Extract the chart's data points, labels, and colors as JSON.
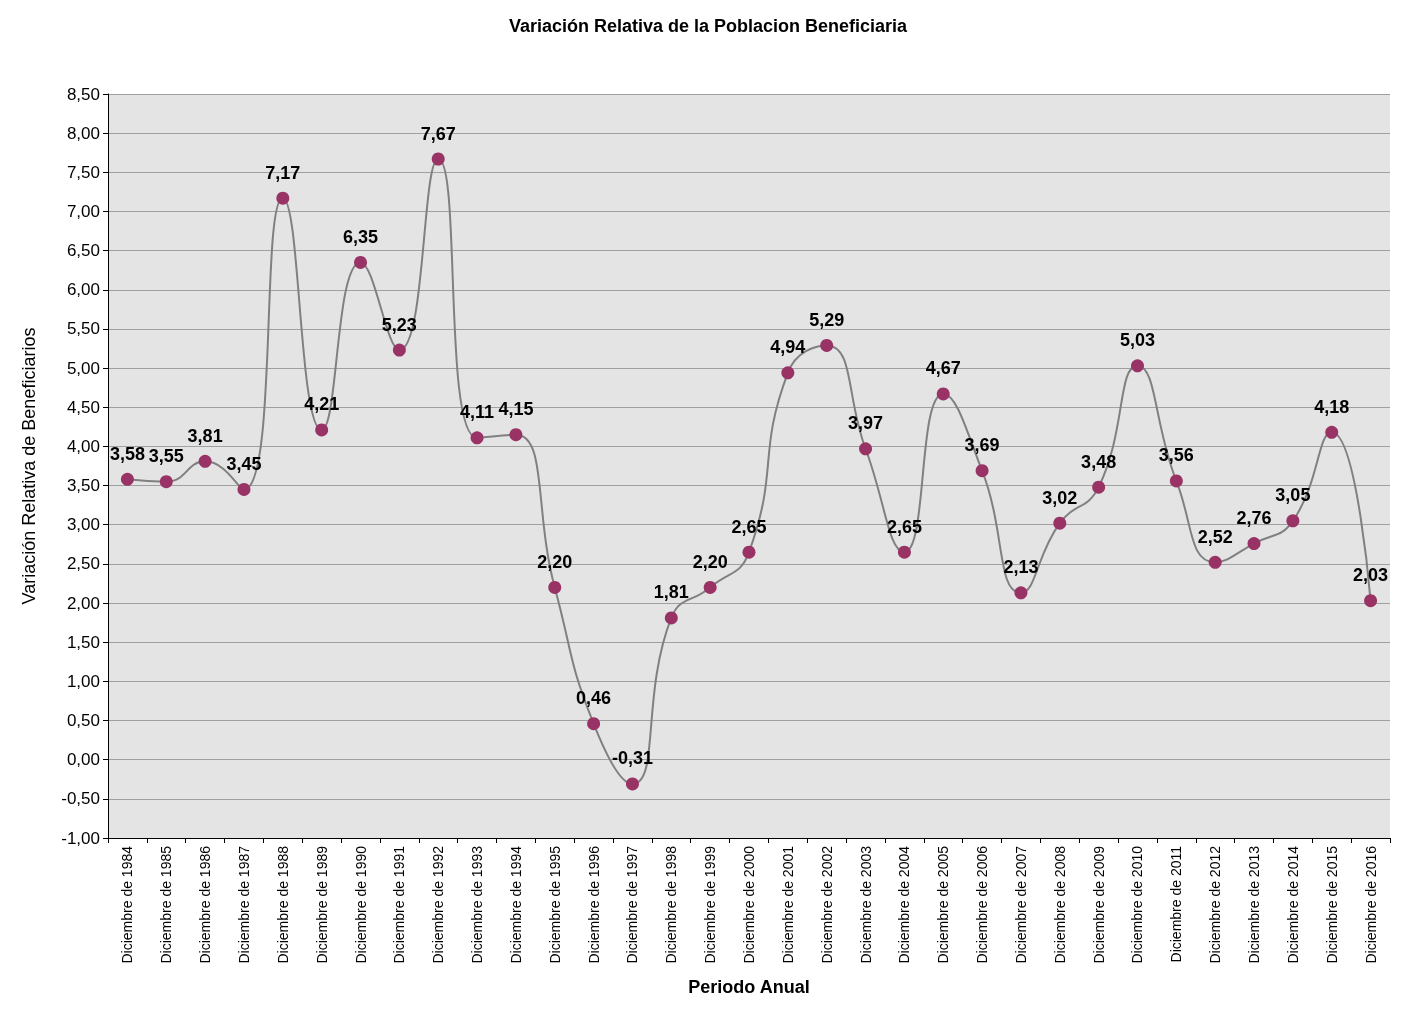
{
  "chart_data": {
    "type": "line",
    "title": "Variación Relativa de la Poblacion Beneficiaria",
    "xlabel": "Periodo Anual",
    "ylabel": "Variación Relativa de Beneficiarios",
    "categories": [
      "Diciembre de 1984",
      "Diciembre de 1985",
      "Diciembre de 1986",
      "Diciembre de 1987",
      "Diciembre de 1988",
      "Diciembre de 1989",
      "Diciembre de 1990",
      "Diciembre de 1991",
      "Diciembre de 1992",
      "Diciembre de 1993",
      "Diciembre de 1994",
      "Diciembre de 1995",
      "Diciembre de 1996",
      "Diciembre de 1997",
      "Diciembre de 1998",
      "Diciembre de 1999",
      "Diciembre de 2000",
      "Diciembre de 2001",
      "Diciembre de 2002",
      "Diciembre de 2003",
      "Diciembre de 2004",
      "Diciembre de 2005",
      "Diciembre de 2006",
      "Diciembre de 2007",
      "Diciembre de 2008",
      "Diciembre de 2009",
      "Diciembre de 2010",
      "Diciembre de 2011",
      "Diciembre de 2012",
      "Diciembre de 2013",
      "Diciembre de 2014",
      "Diciembre de 2015",
      "Diciembre de 2016"
    ],
    "series": [
      {
        "color": "#808080",
        "colors": [
          "#993366",
          "#993366",
          "#993366",
          "#993366",
          "#993366",
          "#993366",
          "#993366",
          "#993366",
          "#993366",
          "#993366",
          "#993366",
          "#993366",
          "#993366",
          "#993366",
          "#993366",
          "#993366",
          "#993366",
          "#993366",
          "#993366",
          "#993366",
          "#993366",
          "#993366",
          "#993366",
          "#993366",
          "#993366",
          "#993366",
          "#993366",
          "#993366",
          "#993366",
          "#993366",
          "#993366",
          "#993366",
          "#993366"
        ],
        "values": [
          3.58,
          3.55,
          3.81,
          3.45,
          7.17,
          4.21,
          6.35,
          5.23,
          7.67,
          4.11,
          4.15,
          2.2,
          0.46,
          -0.31,
          1.81,
          2.2,
          2.65,
          4.94,
          5.29,
          3.97,
          2.65,
          4.67,
          3.69,
          2.13,
          3.02,
          3.48,
          5.03,
          3.56,
          2.52,
          2.76,
          3.05,
          4.18,
          2.03
        ],
        "value_labels": [
          "3,58",
          "3,55",
          "3,81",
          "3,45",
          "7,17",
          "4,21",
          "6,35",
          "5,23",
          "7,67",
          "4,11",
          "4,15",
          "2,20",
          "0,46",
          "-0,31",
          "1,81",
          "2,20",
          "2,65",
          "4,94",
          "5,29",
          "3,97",
          "2,65",
          "4,67",
          "3,69",
          "2,13",
          "3,02",
          "3,48",
          "5,03",
          "3,56",
          "2,52",
          "2,76",
          "3,05",
          "4,18",
          "2,03"
        ]
      }
    ],
    "ylim": [
      -1,
      8.5
    ],
    "yticks": [
      {
        "value": -1,
        "label": "-1,00"
      },
      {
        "value": -0.5,
        "label": "-0,50"
      },
      {
        "value": 0,
        "label": "0,00"
      },
      {
        "value": 0.5,
        "label": "0,50"
      },
      {
        "value": 1,
        "label": "1,00"
      },
      {
        "value": 1.5,
        "label": "1,50"
      },
      {
        "value": 2,
        "label": "2,00"
      },
      {
        "value": 2.5,
        "label": "2,50"
      },
      {
        "value": 3,
        "label": "3,00"
      },
      {
        "value": 3.5,
        "label": "3,50"
      },
      {
        "value": 4,
        "label": "4,00"
      },
      {
        "value": 4.5,
        "label": "4,50"
      },
      {
        "value": 5,
        "label": "5,00"
      },
      {
        "value": 5.5,
        "label": "5,50"
      },
      {
        "value": 6,
        "label": "6,00"
      },
      {
        "value": 6.5,
        "label": "6,50"
      },
      {
        "value": 7,
        "label": "7,00"
      },
      {
        "value": 7.5,
        "label": "7,50"
      },
      {
        "value": 8,
        "label": "8,00"
      },
      {
        "value": 8.5,
        "label": "8,50"
      }
    ],
    "grid": "y",
    "marker": "circle",
    "line_style": "solid"
  }
}
